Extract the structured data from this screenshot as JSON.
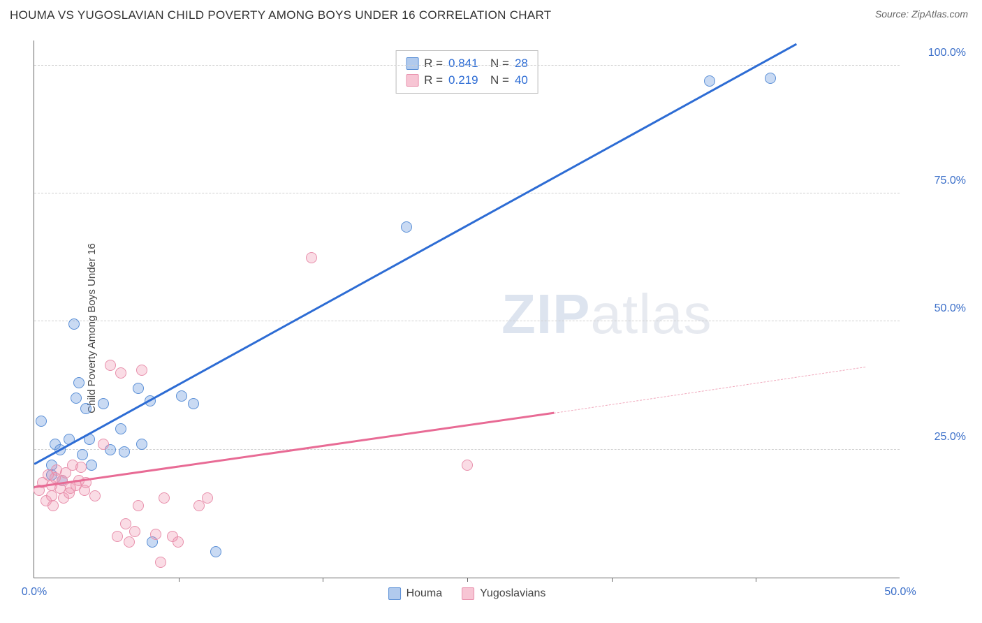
{
  "header": {
    "title": "HOUMA VS YUGOSLAVIAN CHILD POVERTY AMONG BOYS UNDER 16 CORRELATION CHART",
    "source_prefix": "Source: ",
    "source": "ZipAtlas.com"
  },
  "chart": {
    "type": "scatter",
    "ylabel": "Child Poverty Among Boys Under 16",
    "xlim": [
      0,
      50
    ],
    "ylim": [
      0,
      105
    ],
    "xtick_labels": [
      "0.0%",
      "50.0%"
    ],
    "xtick_positions": [
      0,
      50
    ],
    "xtick_minor": [
      8.33,
      16.67,
      25,
      33.33,
      41.67
    ],
    "ytick_labels": [
      "25.0%",
      "50.0%",
      "75.0%",
      "100.0%"
    ],
    "ytick_positions": [
      25,
      50,
      75,
      100
    ],
    "grid_color": "#d0d0d0",
    "background": "#ffffff",
    "series": [
      {
        "name": "Houma",
        "color_fill": "rgba(100,150,220,0.35)",
        "color_stroke": "#5a8fd6",
        "marker_radius": 8,
        "R": "0.841",
        "N": "28",
        "trend": {
          "x1": 0,
          "y1": 22,
          "x2": 44,
          "y2": 104,
          "color": "#2d6cd4",
          "width": 2.5
        },
        "points": [
          [
            0.4,
            30.5
          ],
          [
            1,
            22
          ],
          [
            1,
            20
          ],
          [
            1.2,
            26
          ],
          [
            1.5,
            25
          ],
          [
            1.6,
            19
          ],
          [
            2,
            27
          ],
          [
            2.3,
            49.5
          ],
          [
            2.4,
            35
          ],
          [
            2.6,
            38
          ],
          [
            2.8,
            24
          ],
          [
            3,
            33
          ],
          [
            3.2,
            27
          ],
          [
            3.3,
            22
          ],
          [
            4,
            34
          ],
          [
            4.4,
            25
          ],
          [
            5,
            29
          ],
          [
            5.2,
            24.5
          ],
          [
            6,
            37
          ],
          [
            6.2,
            26
          ],
          [
            6.7,
            34.5
          ],
          [
            8.5,
            35.5
          ],
          [
            9.2,
            34
          ],
          [
            10.5,
            5
          ],
          [
            6.8,
            7
          ],
          [
            21.5,
            68.5
          ],
          [
            39,
            97
          ],
          [
            42.5,
            97.5
          ]
        ]
      },
      {
        "name": "Yugoslavians",
        "color_fill": "rgba(240,140,170,0.30)",
        "color_stroke": "#e890ac",
        "marker_radius": 8,
        "R": "0.219",
        "N": "40",
        "trend_solid": {
          "x1": 0,
          "y1": 17.5,
          "x2": 30,
          "y2": 32,
          "color": "#e86b95",
          "width": 2.5
        },
        "trend_dash": {
          "x1": 30,
          "y1": 32,
          "x2": 48,
          "y2": 41,
          "color": "#f0a8bc"
        },
        "points": [
          [
            0.3,
            17
          ],
          [
            0.5,
            18.5
          ],
          [
            0.7,
            15
          ],
          [
            0.8,
            20
          ],
          [
            1,
            16
          ],
          [
            1,
            18
          ],
          [
            1.1,
            14
          ],
          [
            1.2,
            19.5
          ],
          [
            1.3,
            21
          ],
          [
            1.5,
            17.5
          ],
          [
            1.6,
            19
          ],
          [
            1.7,
            15.5
          ],
          [
            1.8,
            20.5
          ],
          [
            2,
            16.5
          ],
          [
            2.1,
            17.5
          ],
          [
            2.2,
            22
          ],
          [
            2.4,
            18
          ],
          [
            2.6,
            19
          ],
          [
            2.7,
            21.5
          ],
          [
            2.9,
            17
          ],
          [
            3,
            18.5
          ],
          [
            3.5,
            16
          ],
          [
            4,
            26
          ],
          [
            4.4,
            41.5
          ],
          [
            4.8,
            8
          ],
          [
            5,
            40
          ],
          [
            5.3,
            10.5
          ],
          [
            5.5,
            7
          ],
          [
            5.8,
            9
          ],
          [
            6,
            14
          ],
          [
            6.2,
            40.5
          ],
          [
            7,
            8.5
          ],
          [
            7.3,
            3
          ],
          [
            7.5,
            15.5
          ],
          [
            8,
            8
          ],
          [
            8.3,
            7
          ],
          [
            9.5,
            14
          ],
          [
            10,
            15.5
          ],
          [
            16,
            62.5
          ],
          [
            25,
            22
          ]
        ]
      }
    ],
    "legend_bottom": [
      {
        "label": "Houma",
        "swatch": "blue"
      },
      {
        "label": "Yugoslavians",
        "swatch": "pink"
      }
    ],
    "watermark": "ZIPatlas"
  }
}
